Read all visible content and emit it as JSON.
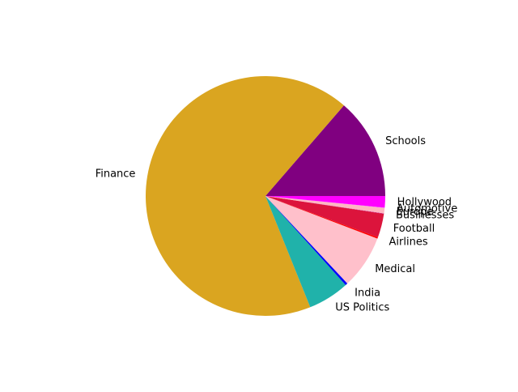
{
  "chart_data": {
    "type": "pie",
    "title": "",
    "start_angle_deg": 0,
    "direction": "counterclockwise",
    "slices": [
      {
        "label": "Schools",
        "value": 13.2,
        "color": "#800080"
      },
      {
        "label": "Finance",
        "value": 65.3,
        "color": "#DAA520"
      },
      {
        "label": "US Politics",
        "value": 5.4,
        "color": "#20B2AA"
      },
      {
        "label": "India",
        "value": 0.3,
        "color": "#0000FF"
      },
      {
        "label": "Medical",
        "value": 7.0,
        "color": "#FFC0CB"
      },
      {
        "label": "Airlines",
        "value": 0.2,
        "color": "#FF0000"
      },
      {
        "label": "Football",
        "value": 3.1,
        "color": "#DC143C"
      },
      {
        "label": "Businesses",
        "value": 0.05,
        "color": "#C71585"
      },
      {
        "label": "Europe",
        "value": 0.7,
        "color": "#FFB6C1"
      },
      {
        "label": "Automotive",
        "value": 0.05,
        "color": "#EE82EE"
      },
      {
        "label": "Hollywood",
        "value": 1.5,
        "color": "#FF00FF"
      }
    ]
  }
}
